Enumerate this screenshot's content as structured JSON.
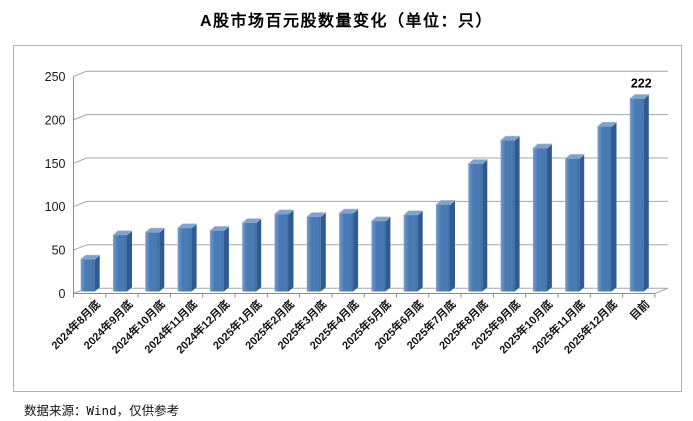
{
  "title": "A股市场百元股数量变化（单位：只）",
  "footer": {
    "source_text": "数据来源：Wind，仅供参考"
  },
  "chart_data": {
    "type": "bar",
    "style": "3d-column",
    "title": "A股市场百元股数量变化（单位：只）",
    "unit": "只",
    "categories": [
      "2024年8月底",
      "2024年9月底",
      "2024年10月底",
      "2024年11月底",
      "2024年12月底",
      "2025年1月底",
      "2025年2月底",
      "2025年3月底",
      "2025年4月底",
      "2025年5月底",
      "2025年6月底",
      "2025年7月底",
      "2025年8月底",
      "2025年9月底",
      "2025年10月底",
      "2025年11月底",
      "2025年12月底",
      "目前"
    ],
    "values": [
      37,
      65,
      68,
      73,
      70,
      79,
      89,
      86,
      90,
      81,
      88,
      100,
      147,
      174,
      165,
      153,
      190,
      222
    ],
    "ylim": [
      0,
      250
    ],
    "yticks": [
      0,
      50,
      100,
      150,
      200,
      250
    ],
    "grid": true,
    "legend": "none",
    "data_labels": [
      {
        "index": 17,
        "text": "222"
      }
    ],
    "colors": {
      "bar_front": "#4a7ab3",
      "bar_front_light": "#7fa3cf",
      "bar_front_dark": "#3f6ba3",
      "bar_side": "#2e5b91",
      "bar_top": "#7da2cd",
      "bar_top_light": "#9dbbdd",
      "gridline": "#a6a6a6",
      "axis": "#8c8c8c",
      "frame_border": "#b3b3b3"
    }
  }
}
